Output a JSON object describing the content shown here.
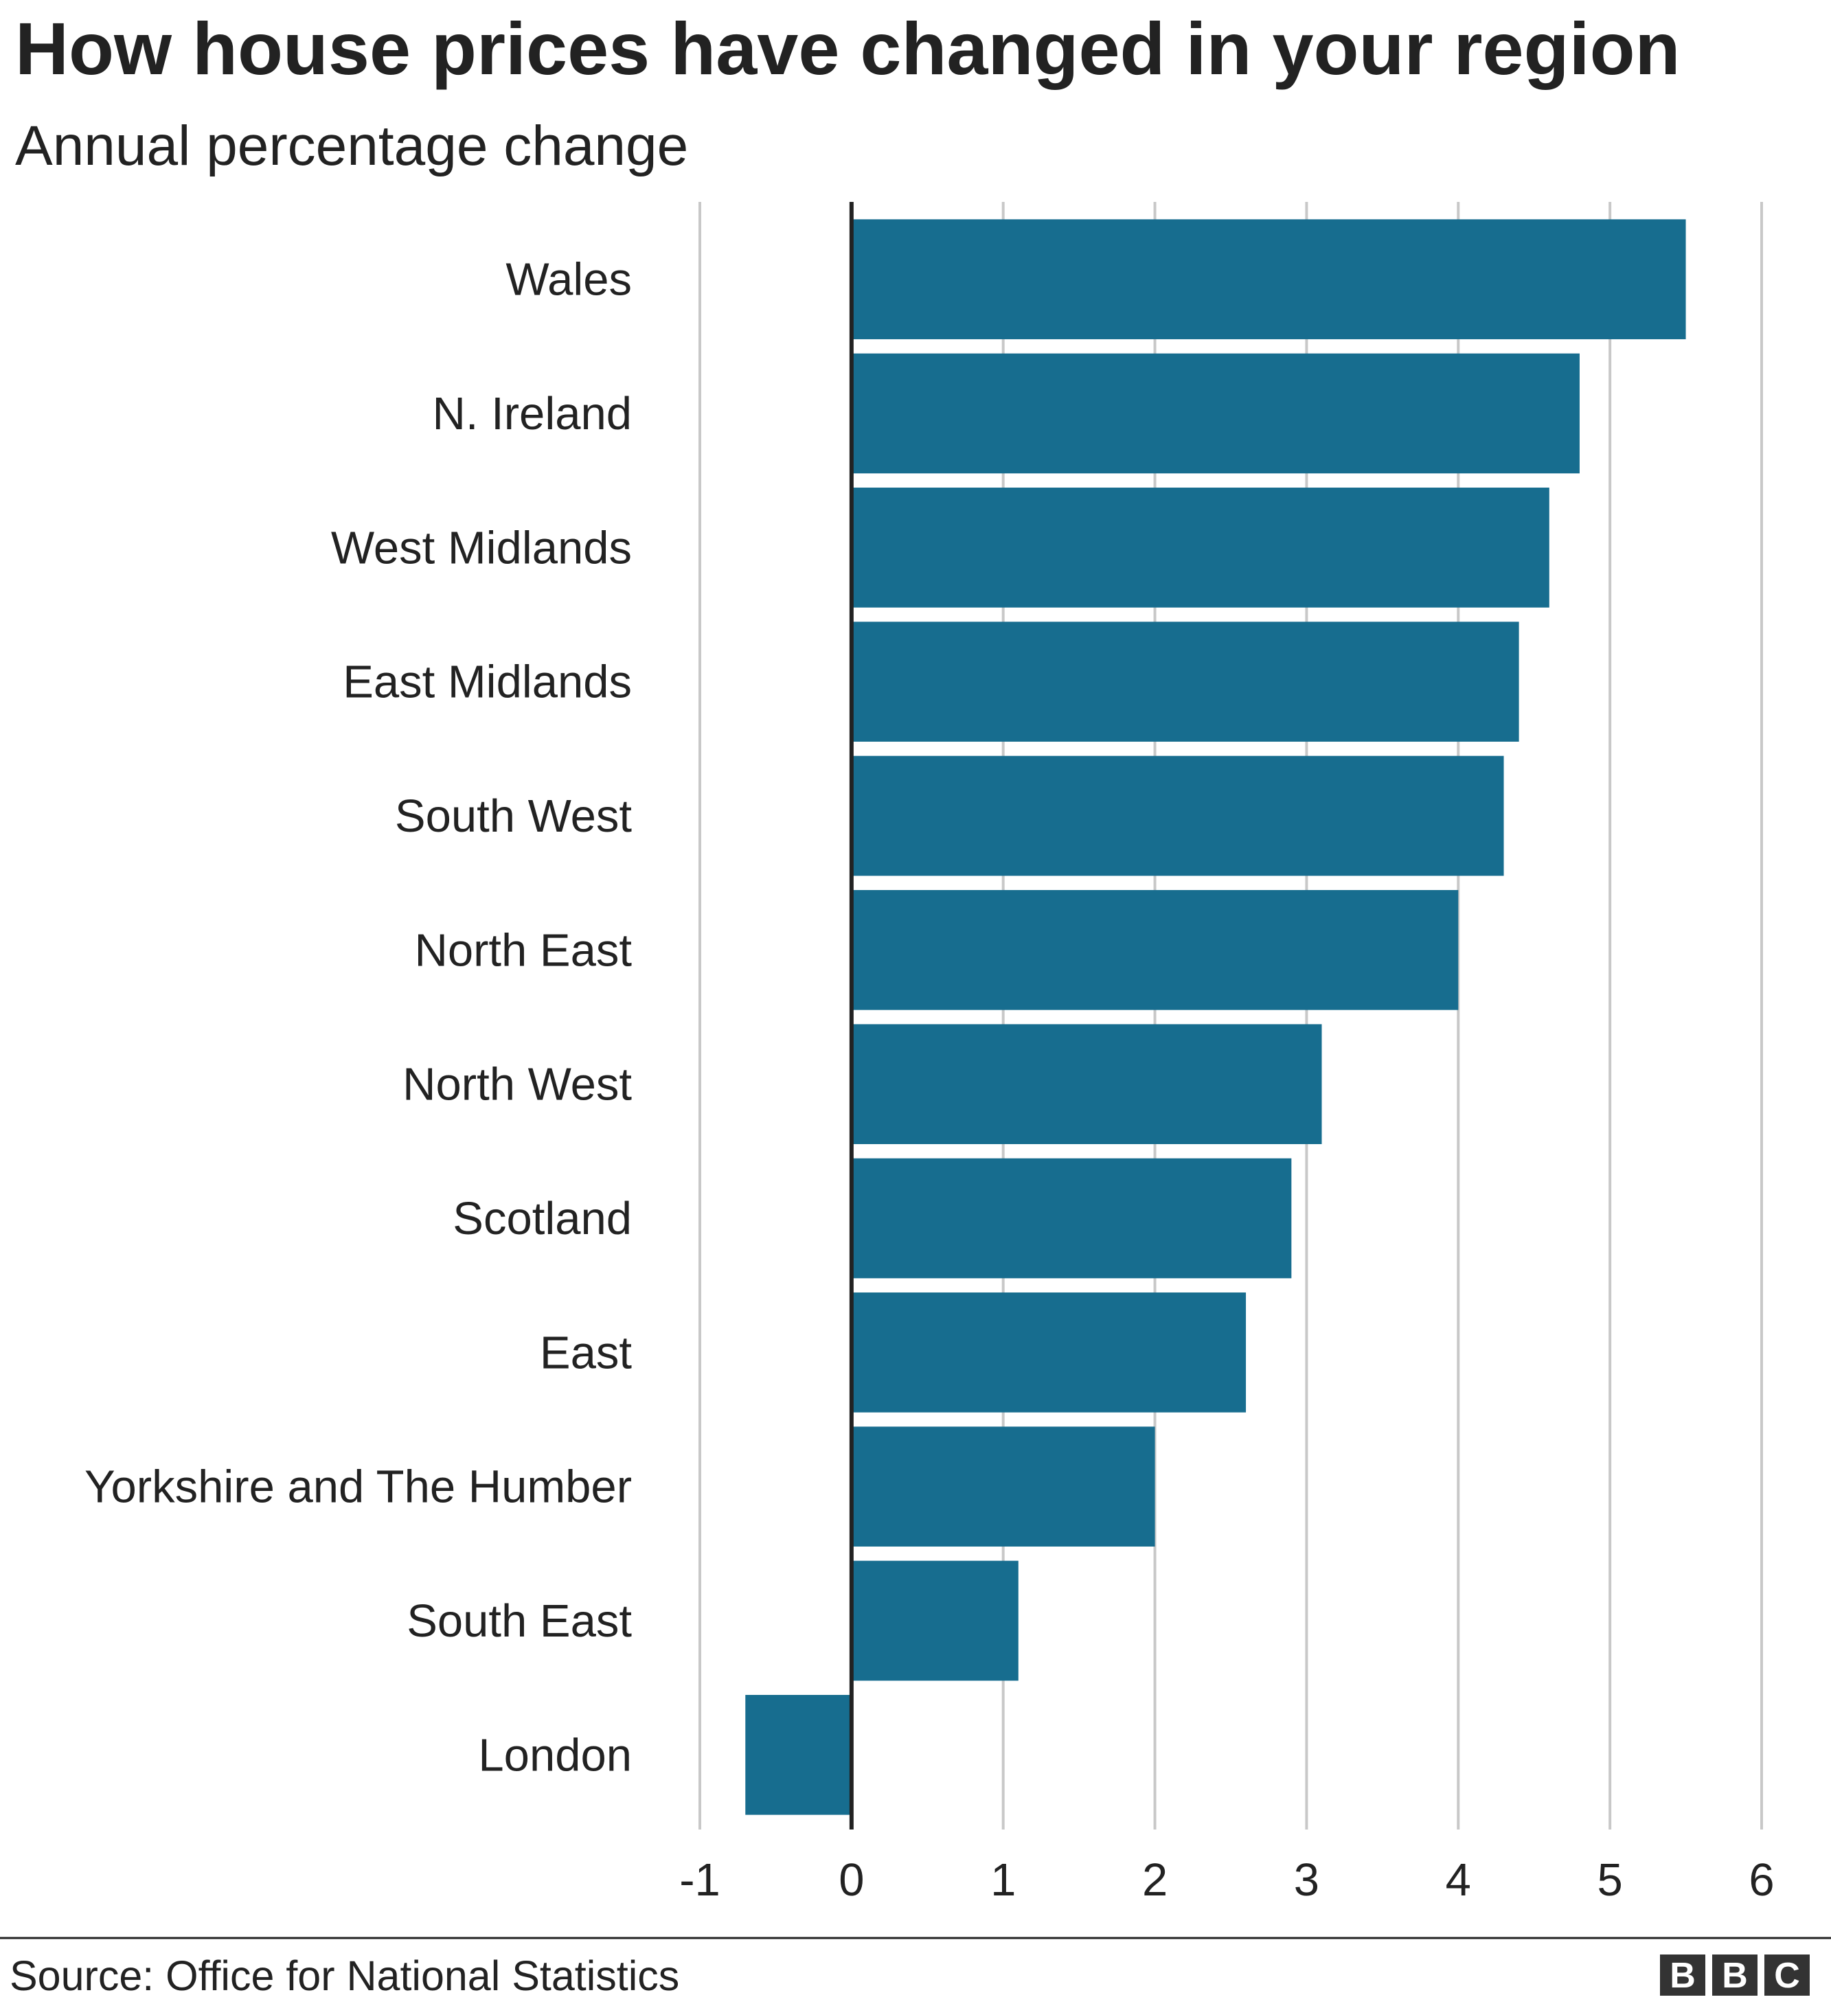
{
  "chart_data": {
    "type": "barh",
    "title": "How house prices have changed in your region",
    "subtitle": "Annual percentage change",
    "categories": [
      "Wales",
      "N. Ireland",
      "West Midlands",
      "East Midlands",
      "South West",
      "North East",
      "North West",
      "Scotland",
      "East",
      "Yorkshire and The Humber",
      "South East",
      "London"
    ],
    "values": [
      5.5,
      4.8,
      4.6,
      4.4,
      4.3,
      4.0,
      3.1,
      2.9,
      2.6,
      2.0,
      1.1,
      -0.7
    ],
    "color": "#176d8f",
    "xlim": [
      -1,
      6
    ],
    "xticks": [
      -1,
      0,
      1,
      2,
      3,
      4,
      5,
      6
    ],
    "grid": true,
    "source": "Source: Office for National Statistics",
    "logo": [
      "B",
      "B",
      "C"
    ]
  }
}
